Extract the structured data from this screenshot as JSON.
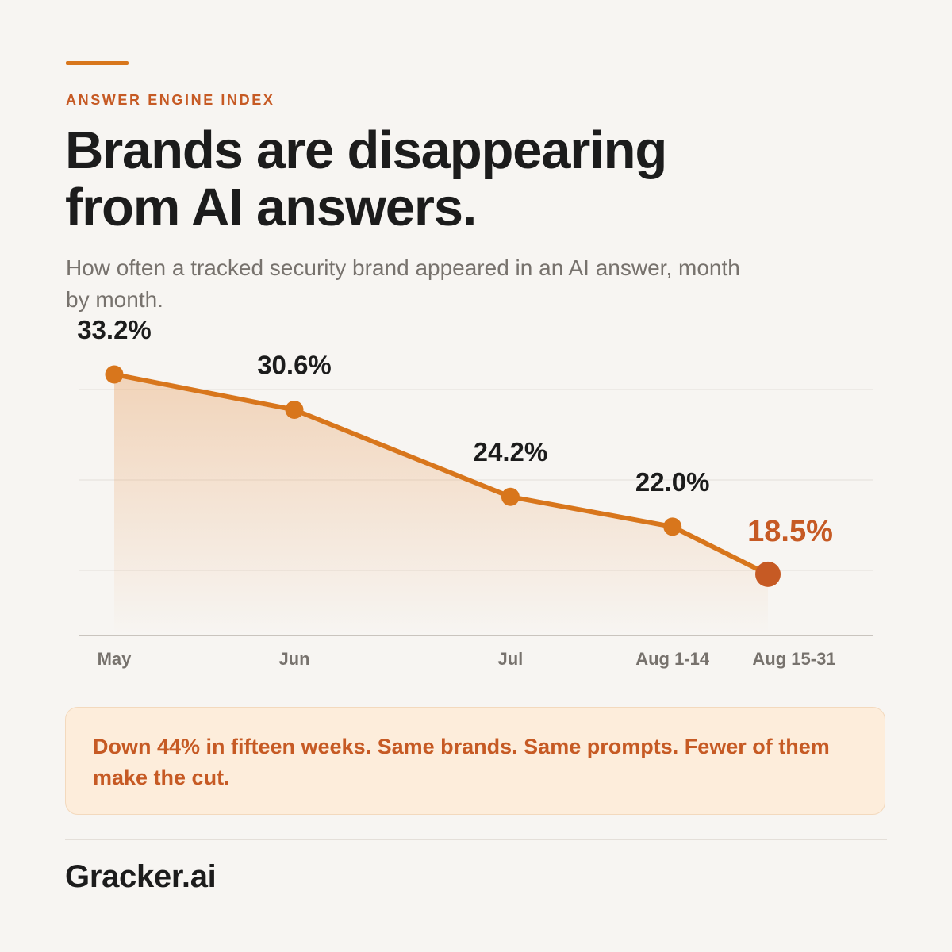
{
  "header": {
    "eyebrow": "ANSWER ENGINE INDEX",
    "title": "Brands are disappearing from AI answers.",
    "subtitle": "How often a tracked security brand appeared in an AI answer, month by month."
  },
  "chart_data": {
    "type": "line",
    "title": "",
    "xlabel": "",
    "ylabel": "",
    "categories": [
      "May",
      "Jun",
      "Jul",
      "Aug 1-14",
      "Aug 15-31"
    ],
    "x": [
      0,
      1,
      2.2,
      3.1,
      3.63
    ],
    "values": [
      33.2,
      30.6,
      24.2,
      22.0,
      18.5
    ],
    "value_labels": [
      "33.2%",
      "30.6%",
      "24.2%",
      "22.0%",
      "18.5%"
    ],
    "ylim": [
      14,
      36
    ],
    "grid": true,
    "legend": "none",
    "colors": {
      "line": "#d8761c",
      "highlight": "#c65a24",
      "grid": "#e3dfda",
      "axis": "#c9c4be"
    }
  },
  "callout": {
    "text": "Down 44% in fifteen weeks. Same brands. Same prompts. Fewer of them make the cut."
  },
  "footer": {
    "brand": "Gracker.ai"
  }
}
